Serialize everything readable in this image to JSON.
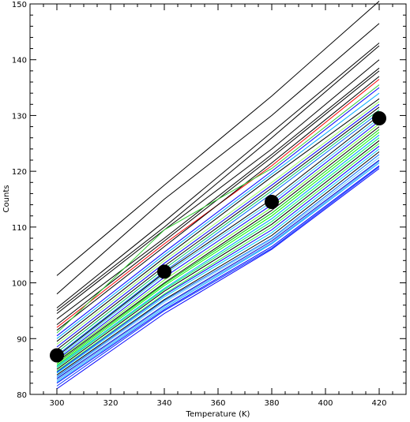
{
  "chart_data": {
    "type": "line",
    "title": "",
    "xlabel": "Temperature (K)",
    "ylabel": "Counts",
    "xlim": [
      290,
      430
    ],
    "ylim": [
      80,
      150
    ],
    "xticks": [
      300,
      320,
      340,
      360,
      380,
      400,
      420
    ],
    "yticks": [
      80,
      90,
      100,
      110,
      120,
      130,
      140,
      150
    ],
    "x": [
      300,
      340,
      380,
      420
    ],
    "grid": false,
    "legend": "none",
    "series": [
      {
        "color": "#000000",
        "values": [
          101.3,
          117.5,
          133.5,
          150.5
        ]
      },
      {
        "color": "#000000",
        "values": [
          98.0,
          115.0,
          130.0,
          146.5
        ]
      },
      {
        "color": "#000000",
        "values": [
          95.5,
          111.0,
          127.0,
          143.0
        ]
      },
      {
        "color": "#000000",
        "values": [
          95.0,
          110.0,
          126.0,
          142.5
        ]
      },
      {
        "color": "#000000",
        "values": [
          94.5,
          109.5,
          124.0,
          140.0
        ]
      },
      {
        "color": "#000000",
        "values": [
          93.5,
          108.0,
          123.0,
          138.5
        ]
      },
      {
        "color": "#000000",
        "values": [
          92.5,
          107.5,
          122.5,
          138.0
        ]
      },
      {
        "color": "#ff0000",
        "values": [
          92.0,
          107.0,
          121.0,
          136.5
        ]
      },
      {
        "color": "#000000",
        "values": [
          91.5,
          106.5,
          121.5,
          137.0
        ]
      },
      {
        "color": "#33cc33",
        "values": [
          91.0,
          109.5,
          120.5,
          135.5
        ]
      },
      {
        "color": "#0000ff",
        "values": [
          90.5,
          105.5,
          120.0,
          135.0
        ]
      },
      {
        "color": "#00aaff",
        "values": [
          90.0,
          105.0,
          119.5,
          134.0
        ]
      },
      {
        "color": "#000000",
        "values": [
          89.5,
          104.5,
          119.0,
          133.0
        ]
      },
      {
        "color": "#99ff66",
        "values": [
          89.0,
          104.0,
          118.0,
          132.5
        ]
      },
      {
        "color": "#0000ff",
        "values": [
          88.5,
          103.5,
          117.5,
          132.0
        ]
      },
      {
        "color": "#000000",
        "values": [
          88.0,
          103.0,
          117.0,
          131.5
        ]
      },
      {
        "color": "#00cc66",
        "values": [
          87.5,
          102.5,
          116.5,
          131.0
        ]
      },
      {
        "color": "#0066ff",
        "values": [
          87.0,
          102.0,
          116.0,
          130.5
        ]
      },
      {
        "color": "#000000",
        "values": [
          86.8,
          101.8,
          115.0,
          130.0
        ]
      },
      {
        "color": "#33ccff",
        "values": [
          86.5,
          101.5,
          114.5,
          129.5
        ]
      },
      {
        "color": "#0000ff",
        "values": [
          86.2,
          101.0,
          114.0,
          129.0
        ]
      },
      {
        "color": "#66ff33",
        "values": [
          86.0,
          100.5,
          113.5,
          128.5
        ]
      },
      {
        "color": "#000000",
        "values": [
          85.8,
          100.0,
          113.0,
          128.0
        ]
      },
      {
        "color": "#00cc00",
        "values": [
          85.5,
          99.8,
          112.5,
          127.5
        ]
      },
      {
        "color": "#00ff00",
        "values": [
          85.2,
          99.5,
          112.0,
          127.0
        ]
      },
      {
        "color": "#0099ff",
        "values": [
          85.0,
          99.0,
          111.5,
          126.5
        ]
      },
      {
        "color": "#00ff66",
        "values": [
          84.8,
          98.8,
          111.0,
          126.0
        ]
      },
      {
        "color": "#000000",
        "values": [
          84.5,
          98.5,
          110.5,
          125.5
        ]
      },
      {
        "color": "#33ff33",
        "values": [
          84.2,
          98.0,
          110.0,
          125.0
        ]
      },
      {
        "color": "#0000ff",
        "values": [
          84.0,
          97.8,
          109.5,
          124.5
        ]
      },
      {
        "color": "#00ccff",
        "values": [
          83.8,
          97.5,
          109.0,
          124.0
        ]
      },
      {
        "color": "#000000",
        "values": [
          83.5,
          97.0,
          108.5,
          123.5
        ]
      },
      {
        "color": "#0066ff",
        "values": [
          83.2,
          96.8,
          108.0,
          123.0
        ]
      },
      {
        "color": "#66ccff",
        "values": [
          83.0,
          96.5,
          107.8,
          122.5
        ]
      },
      {
        "color": "#0000cc",
        "values": [
          82.8,
          96.0,
          107.5,
          122.0
        ]
      },
      {
        "color": "#3399ff",
        "values": [
          82.5,
          95.8,
          107.2,
          121.8
        ]
      },
      {
        "color": "#00aaff",
        "values": [
          82.2,
          95.5,
          107.0,
          121.5
        ]
      },
      {
        "color": "#0000ff",
        "values": [
          82.0,
          95.2,
          106.5,
          121.0
        ]
      },
      {
        "color": "#0033ff",
        "values": [
          81.5,
          95.0,
          106.2,
          120.8
        ]
      },
      {
        "color": "#0000ff",
        "values": [
          81.0,
          94.5,
          106.0,
          120.5
        ]
      }
    ],
    "markers": {
      "color": "#000000",
      "x": [
        300,
        340,
        380,
        420
      ],
      "y": [
        87.0,
        102.0,
        114.5,
        129.5
      ]
    }
  }
}
